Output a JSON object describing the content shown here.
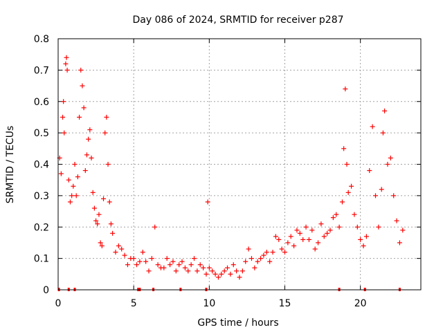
{
  "chart_data": {
    "type": "scatter",
    "title": "Day 086 of 2024, SRMTID for receiver p287",
    "xlabel": "GPS time / hours",
    "ylabel": "SRMTID / TECUs",
    "xlim": [
      0,
      24
    ],
    "ylim": [
      0,
      0.8
    ],
    "xticks": [
      0,
      5,
      10,
      15,
      20
    ],
    "xtick_labels": [
      "0",
      "5",
      "10",
      "15",
      "20"
    ],
    "yticks": [
      0,
      0.1,
      0.2,
      0.3,
      0.4,
      0.5,
      0.6,
      0.7,
      0.8
    ],
    "ytick_labels": [
      "0",
      "0.1",
      "0.2",
      "0.3",
      "0.4",
      "0.5",
      "0.6",
      "0.7",
      "0.8"
    ],
    "grid": true,
    "marker": "+",
    "color": "#ff0000",
    "series": [
      {
        "name": "SRMTID",
        "x": [
          0.1,
          0.2,
          0.3,
          0.35,
          0.4,
          0.5,
          0.55,
          0.6,
          0.7,
          0.8,
          0.9,
          1.0,
          1.1,
          1.2,
          1.3,
          1.4,
          1.5,
          1.6,
          1.7,
          1.8,
          1.9,
          2.0,
          2.1,
          2.2,
          2.3,
          2.4,
          2.5,
          2.6,
          2.7,
          2.8,
          2.9,
          3.0,
          3.1,
          3.2,
          3.3,
          3.4,
          3.5,
          3.6,
          3.8,
          4.0,
          4.2,
          4.4,
          4.6,
          4.8,
          5.0,
          5.2,
          5.4,
          5.6,
          5.8,
          6.0,
          6.2,
          6.4,
          6.6,
          6.8,
          7.0,
          7.2,
          7.4,
          7.6,
          7.8,
          8.0,
          8.2,
          8.4,
          8.6,
          8.8,
          9.0,
          9.2,
          9.4,
          9.6,
          9.8,
          9.9,
          10.0,
          10.2,
          10.4,
          10.6,
          10.8,
          11.0,
          11.2,
          11.4,
          11.6,
          11.8,
          12.0,
          12.2,
          12.4,
          12.6,
          12.8,
          13.0,
          13.2,
          13.4,
          13.6,
          13.8,
          14.0,
          14.2,
          14.4,
          14.6,
          14.8,
          15.0,
          15.2,
          15.4,
          15.6,
          15.8,
          16.0,
          16.2,
          16.4,
          16.6,
          16.8,
          17.0,
          17.2,
          17.4,
          17.6,
          17.8,
          18.0,
          18.2,
          18.4,
          18.6,
          18.8,
          18.9,
          19.0,
          19.1,
          19.2,
          19.4,
          19.6,
          19.8,
          20.0,
          20.2,
          20.4,
          20.6,
          20.8,
          21.0,
          21.2,
          21.4,
          21.5,
          21.6,
          21.8,
          22.0,
          22.2,
          22.4,
          22.6,
          22.8
        ],
        "y": [
          0.42,
          0.37,
          0.55,
          0.6,
          0.5,
          0.72,
          0.74,
          0.7,
          0.35,
          0.28,
          0.3,
          0.33,
          0.4,
          0.3,
          0.36,
          0.55,
          0.7,
          0.65,
          0.58,
          0.38,
          0.43,
          0.48,
          0.51,
          0.42,
          0.31,
          0.26,
          0.22,
          0.21,
          0.24,
          0.15,
          0.14,
          0.29,
          0.5,
          0.55,
          0.4,
          0.28,
          0.21,
          0.18,
          0.12,
          0.14,
          0.13,
          0.11,
          0.08,
          0.1,
          0.1,
          0.08,
          0.09,
          0.12,
          0.09,
          0.06,
          0.1,
          0.2,
          0.08,
          0.07,
          0.07,
          0.1,
          0.08,
          0.09,
          0.06,
          0.08,
          0.09,
          0.07,
          0.06,
          0.08,
          0.1,
          0.06,
          0.08,
          0.07,
          0.05,
          0.28,
          0.07,
          0.06,
          0.05,
          0.04,
          0.05,
          0.06,
          0.07,
          0.05,
          0.08,
          0.06,
          0.04,
          0.06,
          0.09,
          0.13,
          0.1,
          0.07,
          0.09,
          0.1,
          0.11,
          0.12,
          0.09,
          0.12,
          0.17,
          0.16,
          0.13,
          0.12,
          0.15,
          0.17,
          0.14,
          0.19,
          0.18,
          0.16,
          0.2,
          0.16,
          0.19,
          0.13,
          0.15,
          0.21,
          0.17,
          0.18,
          0.19,
          0.23,
          0.24,
          0.2,
          0.28,
          0.45,
          0.64,
          0.4,
          0.31,
          0.33,
          0.24,
          0.2,
          0.16,
          0.14,
          0.17,
          0.38,
          0.52,
          0.3,
          0.2,
          0.32,
          0.5,
          0.57,
          0.4,
          0.42,
          0.3,
          0.22,
          0.15,
          0.19
        ]
      }
    ],
    "zero_markers_x": [
      0.05,
      0.7,
      1.1,
      5.3,
      5.4,
      6.3,
      8.1,
      9.8,
      18.6,
      20.3,
      22.6
    ]
  }
}
